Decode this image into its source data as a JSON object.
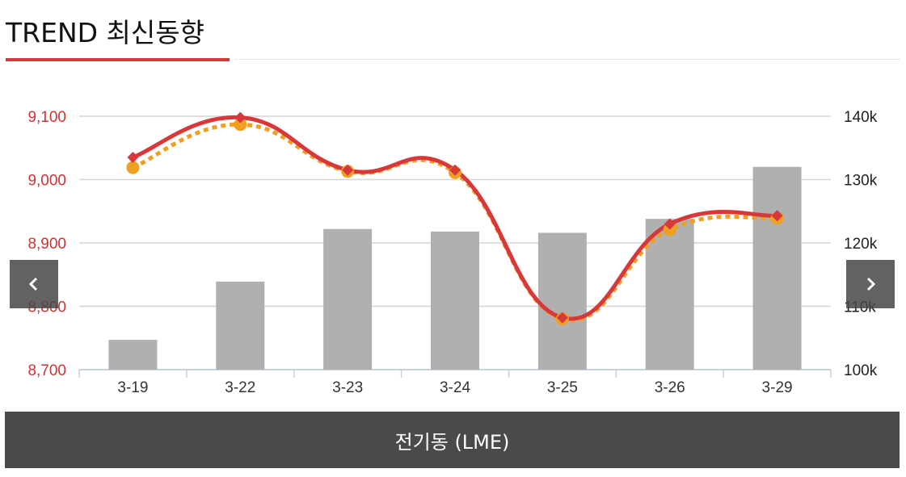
{
  "header": {
    "title": "TREND 최신동향"
  },
  "footer": {
    "label": "전기동 (LME)"
  },
  "nav": {
    "prev_icon": "chevron-left-icon",
    "next_icon": "chevron-right-icon"
  },
  "colors": {
    "price_line": "#d8383a",
    "secondary_line": "#f0a020",
    "bars": "#b0b0b0",
    "left_axis_text": "#cc3333"
  },
  "chart_data": {
    "type": "bar",
    "categories": [
      "3-19",
      "3-22",
      "3-23",
      "3-24",
      "3-25",
      "3-26",
      "3-29"
    ],
    "y_left": {
      "ticks": [
        "8,700",
        "8,800",
        "8,900",
        "9,000",
        "9,100"
      ],
      "range": [
        8700,
        9100
      ]
    },
    "y_right": {
      "ticks": [
        "100k",
        "110k",
        "120k",
        "130k",
        "140k"
      ],
      "range": [
        100000,
        140000
      ]
    },
    "grid": true,
    "series": [
      {
        "type": "bar",
        "axis": "right",
        "values": [
          104700,
          113900,
          122200,
          121800,
          121600,
          123800,
          132000
        ]
      },
      {
        "type": "line",
        "axis": "left",
        "style": "solid",
        "marker": "diamond",
        "values": [
          9035,
          9098,
          9015,
          9015,
          8782,
          8930,
          8943
        ]
      },
      {
        "type": "line",
        "axis": "left",
        "style": "dotted",
        "marker": "circle",
        "values": [
          9019,
          9087,
          9013,
          9011,
          8780,
          8921,
          8939
        ]
      }
    ]
  }
}
